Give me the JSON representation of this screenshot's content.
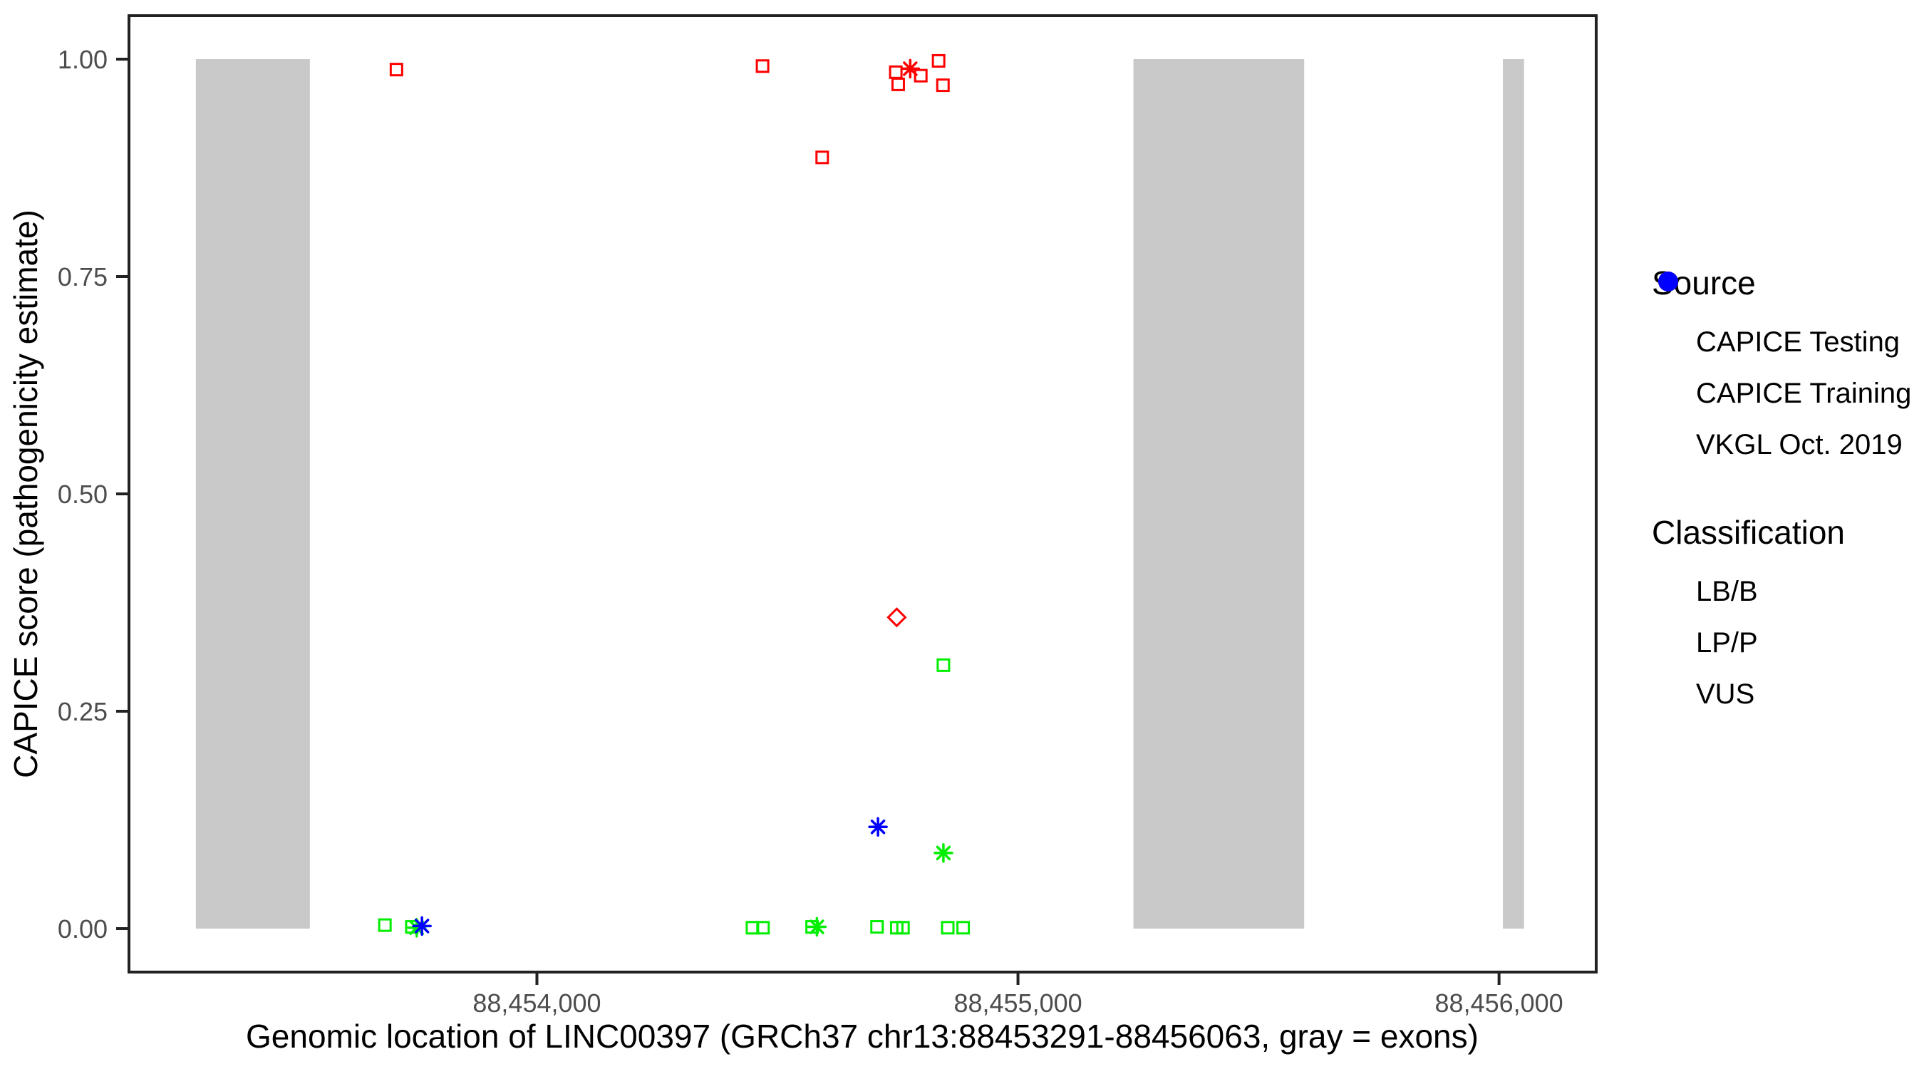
{
  "figure": {
    "x_axis_title": "Genomic location of LINC00397 (GRCh37 chr13:88453291-88456063, gray = exons)",
    "y_axis_title": "CAPICE score (pathogenicity estimate)"
  },
  "legend": {
    "source": {
      "title": "Source",
      "items": [
        {
          "shape": "diamond",
          "label": "CAPICE Testing"
        },
        {
          "shape": "square",
          "label": "CAPICE Training"
        },
        {
          "shape": "asterisk",
          "label": "VKGL Oct. 2019"
        }
      ]
    },
    "classification": {
      "title": "Classification",
      "items": [
        {
          "color": "#00EE00",
          "label": "LB/B"
        },
        {
          "color": "#FF0000",
          "label": "LP/P"
        },
        {
          "color": "#0000FF",
          "label": "VUS"
        }
      ]
    }
  },
  "colors": {
    "lb_b": "#00EE00",
    "lp_p": "#FF0000",
    "vus": "#0000FF",
    "exon_gray": "#C9C9C9",
    "axis_line": "#222222",
    "tick_text": "#4d4d4d"
  },
  "chart_data": {
    "type": "scatter",
    "title": "",
    "xlabel": "Genomic location of LINC00397 (GRCh37 chr13:88453291-88456063, gray = exons)",
    "ylabel": "CAPICE score (pathogenicity estimate)",
    "xlim": [
      88453152,
      88456202
    ],
    "ylim": [
      -0.05,
      1.05
    ],
    "grid": false,
    "legend_position": "right",
    "x_ticks": [
      {
        "value": 88454000,
        "label": "88,454,000"
      },
      {
        "value": 88455000,
        "label": "88,455,000"
      },
      {
        "value": 88456000,
        "label": "88,456,000"
      }
    ],
    "y_ticks": [
      {
        "value": 0.0,
        "label": "0.00"
      },
      {
        "value": 0.25,
        "label": "0.25"
      },
      {
        "value": 0.5,
        "label": "0.50"
      },
      {
        "value": 0.75,
        "label": "0.75"
      },
      {
        "value": 1.0,
        "label": "1.00"
      }
    ],
    "exons_bp": [
      [
        88453291,
        88453528
      ],
      [
        88455240,
        88455595
      ],
      [
        88456008,
        88456052
      ]
    ],
    "exon_span_score": [
      0.0,
      1.0
    ],
    "series": [
      {
        "name": "LP/P - CAPICE Training",
        "classification": "LP/P",
        "source": "CAPICE Training",
        "shape": "square",
        "color": "#FF0000",
        "points": [
          [
            88453708,
            0.988
          ],
          [
            88454469,
            0.992
          ],
          [
            88454593,
            0.887
          ],
          [
            88454746,
            0.985
          ],
          [
            88454751,
            0.971
          ],
          [
            88454798,
            0.981
          ],
          [
            88454835,
            0.998
          ],
          [
            88454844,
            0.97
          ]
        ]
      },
      {
        "name": "LP/P - CAPICE Testing",
        "classification": "LP/P",
        "source": "CAPICE Testing",
        "shape": "diamond",
        "color": "#FF0000",
        "points": [
          [
            88454748,
            0.358
          ]
        ]
      },
      {
        "name": "LP/P - VKGL Oct. 2019",
        "classification": "LP/P",
        "source": "VKGL Oct. 2019",
        "shape": "asterisk",
        "color": "#FF0000",
        "points": [
          [
            88454776,
            0.989
          ]
        ]
      },
      {
        "name": "LB/B - CAPICE Training",
        "classification": "LB/B",
        "source": "CAPICE Training",
        "shape": "square",
        "color": "#00EE00",
        "points": [
          [
            88453684,
            0.004
          ],
          [
            88453740,
            0.002
          ],
          [
            88454448,
            0.001
          ],
          [
            88454470,
            0.001
          ],
          [
            88454572,
            0.002
          ],
          [
            88454707,
            0.002
          ],
          [
            88454748,
            0.001
          ],
          [
            88454761,
            0.001
          ],
          [
            88454845,
            0.303
          ],
          [
            88454854,
            0.001
          ],
          [
            88454886,
            0.001
          ]
        ]
      },
      {
        "name": "LB/B - VKGL Oct. 2019",
        "classification": "LB/B",
        "source": "VKGL Oct. 2019",
        "shape": "asterisk",
        "color": "#00EE00",
        "points": [
          [
            88453750,
            0.001
          ],
          [
            88454582,
            0.002
          ],
          [
            88454845,
            0.087
          ]
        ]
      },
      {
        "name": "VUS - VKGL Oct. 2019",
        "classification": "VUS",
        "source": "VKGL Oct. 2019",
        "shape": "asterisk",
        "color": "#0000FF",
        "points": [
          [
            88453761,
            0.003
          ],
          [
            88454709,
            0.117
          ]
        ]
      }
    ]
  }
}
